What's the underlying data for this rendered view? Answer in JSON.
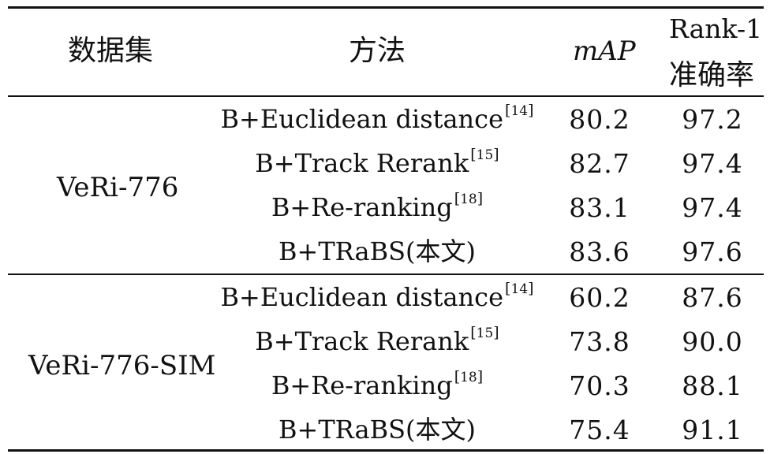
{
  "table": {
    "headers": {
      "dataset": "数据集",
      "method": "方法",
      "map": "mAP",
      "rank1_line1": "Rank-1",
      "rank1_line2": "准确率"
    },
    "groups": [
      {
        "dataset": "VeRi-776",
        "rows": [
          {
            "method": "B+Euclidean distance",
            "ref": "14",
            "map": "80.2",
            "rank1": "97.2"
          },
          {
            "method": "B+Track Rerank",
            "ref": "15",
            "map": "82.7",
            "rank1": "97.4"
          },
          {
            "method": "B+Re-ranking",
            "ref": "18",
            "map": "83.1",
            "rank1": "97.4"
          },
          {
            "method": "B+TRaBS(本文)",
            "ref": "",
            "map": "83.6",
            "rank1": "97.6"
          }
        ]
      },
      {
        "dataset": "VeRi-776-SIM",
        "rows": [
          {
            "method": "B+Euclidean distance",
            "ref": "14",
            "map": "60.2",
            "rank1": "87.6"
          },
          {
            "method": "B+Track Rerank",
            "ref": "15",
            "map": "73.8",
            "rank1": "90.0"
          },
          {
            "method": "B+Re-ranking",
            "ref": "18",
            "map": "70.3",
            "rank1": "88.1"
          },
          {
            "method": "B+TRaBS(本文)",
            "ref": "",
            "map": "75.4",
            "rank1": "91.1"
          }
        ]
      }
    ]
  }
}
